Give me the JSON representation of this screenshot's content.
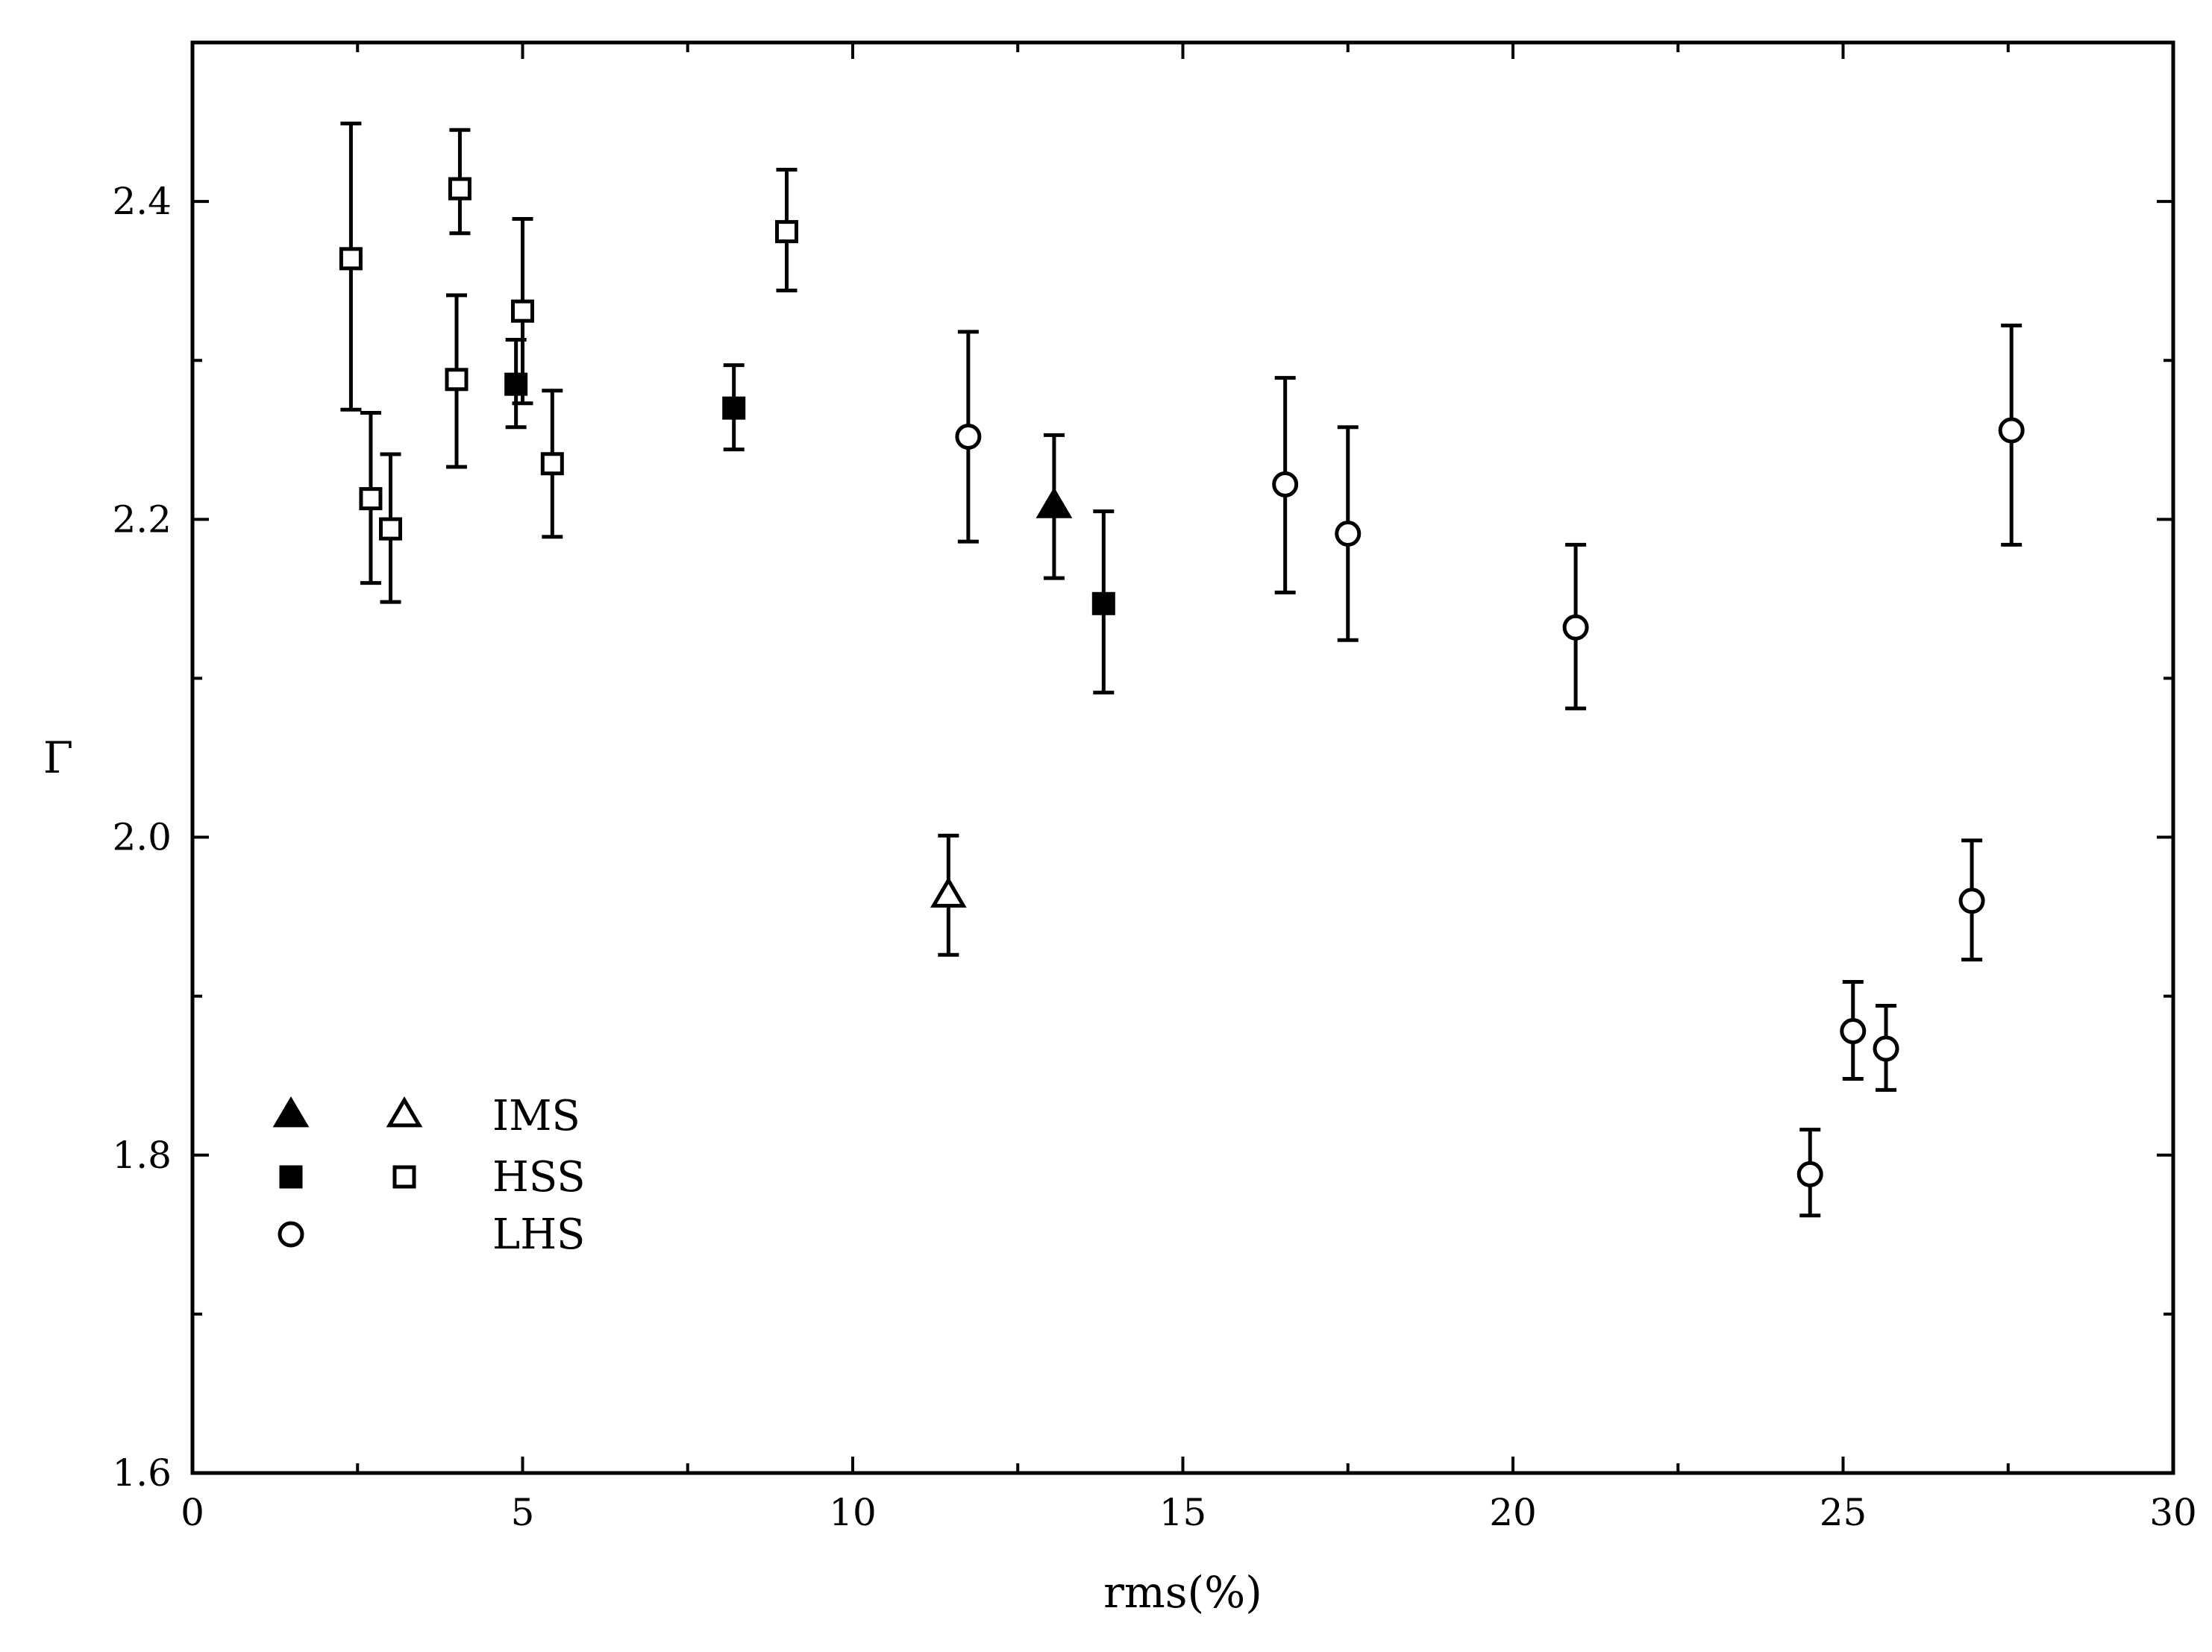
{
  "chart_data": {
    "type": "scatter",
    "title": "",
    "xlabel": "rms(%)",
    "ylabel": "Γ",
    "xlim": [
      0,
      30
    ],
    "ylim": [
      1.6,
      2.5
    ],
    "x_ticks": [
      0,
      5,
      10,
      15,
      20,
      25,
      30
    ],
    "x_tick_labels": [
      "0",
      "5",
      "10",
      "15",
      "20",
      "25",
      "30"
    ],
    "y_ticks": [
      1.6,
      1.8,
      2.0,
      2.2,
      2.4
    ],
    "y_tick_labels": [
      "1.6",
      "1.8",
      "2.0",
      "2.2",
      "2.4"
    ],
    "grid": false,
    "legend_position": "lower-left",
    "legend": [
      {
        "label": "IMS",
        "markers": [
          "filled-triangle",
          "open-triangle"
        ]
      },
      {
        "label": "HSS",
        "markers": [
          "filled-square",
          "open-square"
        ]
      },
      {
        "label": "LHS",
        "markers": [
          "open-circle"
        ]
      }
    ],
    "series": [
      {
        "marker": "filled-triangle",
        "points": [
          {
            "x": 13.05,
            "y": 2.208,
            "ylo": 2.163,
            "yhi": 2.253
          }
        ]
      },
      {
        "marker": "open-triangle",
        "points": [
          {
            "x": 11.45,
            "y": 1.963,
            "ylo": 1.926,
            "yhi": 2.001
          }
        ]
      },
      {
        "marker": "filled-square",
        "points": [
          {
            "x": 4.9,
            "y": 2.285,
            "ylo": 2.258,
            "yhi": 2.313
          },
          {
            "x": 8.2,
            "y": 2.27,
            "ylo": 2.244,
            "yhi": 2.297
          },
          {
            "x": 13.8,
            "y": 2.147,
            "ylo": 2.091,
            "yhi": 2.205
          }
        ]
      },
      {
        "marker": "open-square",
        "points": [
          {
            "x": 2.4,
            "y": 2.364,
            "ylo": 2.269,
            "yhi": 2.449
          },
          {
            "x": 2.7,
            "y": 2.213,
            "ylo": 2.16,
            "yhi": 2.267
          },
          {
            "x": 3.0,
            "y": 2.194,
            "ylo": 2.148,
            "yhi": 2.241
          },
          {
            "x": 4.0,
            "y": 2.288,
            "ylo": 2.233,
            "yhi": 2.341
          },
          {
            "x": 4.05,
            "y": 2.408,
            "ylo": 2.38,
            "yhi": 2.445
          },
          {
            "x": 5.0,
            "y": 2.331,
            "ylo": 2.273,
            "yhi": 2.389
          },
          {
            "x": 5.45,
            "y": 2.235,
            "ylo": 2.189,
            "yhi": 2.281
          },
          {
            "x": 9.0,
            "y": 2.381,
            "ylo": 2.344,
            "yhi": 2.42
          }
        ]
      },
      {
        "marker": "open-circle",
        "points": [
          {
            "x": 11.75,
            "y": 2.252,
            "ylo": 2.186,
            "yhi": 2.318
          },
          {
            "x": 16.55,
            "y": 2.222,
            "ylo": 2.154,
            "yhi": 2.289
          },
          {
            "x": 17.5,
            "y": 2.191,
            "ylo": 2.124,
            "yhi": 2.258
          },
          {
            "x": 20.95,
            "y": 2.132,
            "ylo": 2.081,
            "yhi": 2.184
          },
          {
            "x": 24.5,
            "y": 1.788,
            "ylo": 1.762,
            "yhi": 1.816
          },
          {
            "x": 25.15,
            "y": 1.878,
            "ylo": 1.848,
            "yhi": 1.909
          },
          {
            "x": 25.65,
            "y": 1.867,
            "ylo": 1.841,
            "yhi": 1.894
          },
          {
            "x": 26.95,
            "y": 1.96,
            "ylo": 1.923,
            "yhi": 1.998
          },
          {
            "x": 27.55,
            "y": 2.256,
            "ylo": 2.184,
            "yhi": 2.322
          }
        ]
      }
    ]
  }
}
